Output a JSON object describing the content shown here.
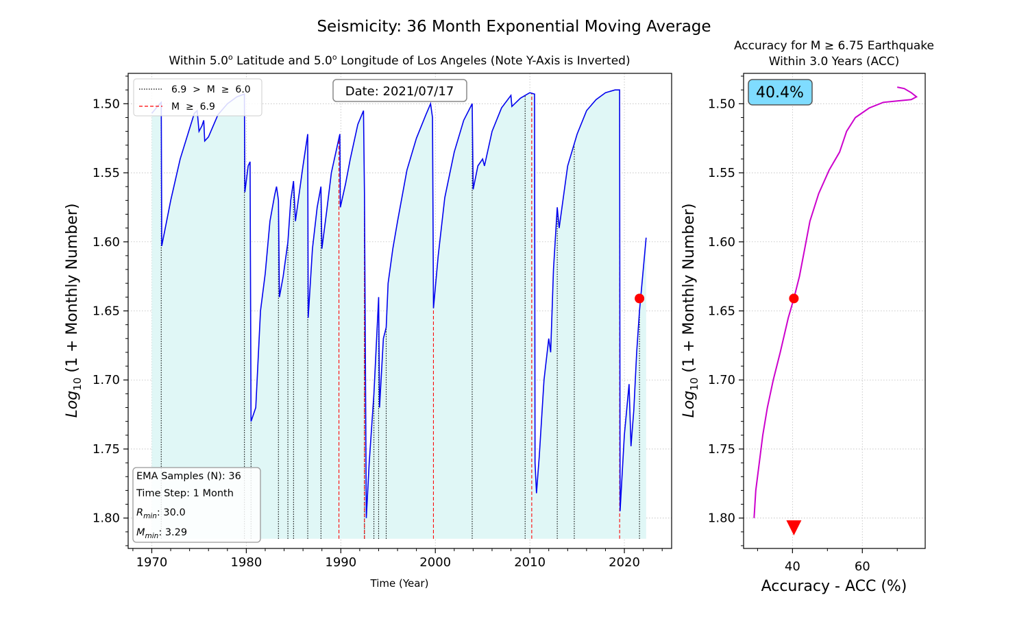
{
  "suptitle": "Seismicity: 36 Month Exponential Moving Average",
  "colors": {
    "ema_line": "#0000ee",
    "fill": "#e0f7f6",
    "event_small": "#000000",
    "event_large": "#ff0000",
    "current_marker": "#ff0000",
    "acc_line": "#cc00cc",
    "acc_badge_bg": "#7fdcff",
    "grid": "#bbbbbb"
  },
  "chart_data": [
    {
      "type": "line",
      "title": "Within 5.0° Latitude and 5.0° Longitude of Los Angeles (Note Y-Axis is Inverted)",
      "title_parts": {
        "a": "Within 5.0",
        "b": "o",
        "c": " Latitude and 5.0",
        "d": "o",
        "e": " Longitude of Los Angeles (Note Y-Axis is Inverted)"
      },
      "xlabel": "Time (Year)",
      "ylabel": "Log10 (1 + Monthly Number)",
      "ylabel_parts": {
        "base": "Log",
        "sub": "10",
        "rest": " (1 + Monthly Number)"
      },
      "xlim": [
        1967.5,
        2025
      ],
      "ylim": [
        1.822,
        1.478
      ],
      "y_inverted": true,
      "grid": true,
      "xticks": [
        "1970",
        "1980",
        "1990",
        "2000",
        "2010",
        "2020"
      ],
      "yticks": [
        "1.50",
        "1.55",
        "1.60",
        "1.65",
        "1.70",
        "1.75",
        "1.80"
      ],
      "date_badge": "Date: 2021/07/17",
      "legend": {
        "position": "top-left",
        "entries": [
          {
            "label": "6.9  >  M  ≥  6.0",
            "style": "dotted black"
          },
          {
            "label": "M  ≥  6.9",
            "style": "dashed red"
          }
        ]
      },
      "info_box": {
        "lines": [
          "EMA Samples (N): 36",
          "Time Step: 1 Month"
        ],
        "rmin": {
          "sym": "R",
          "sub": "min",
          "val": ": 30.0"
        },
        "mmin": {
          "sym": "M",
          "sub": "min",
          "val": ": 3.29"
        }
      },
      "fill_baseline": 1.815,
      "series": [
        {
          "style": "solid blue",
          "points": [
            [
              1970.0,
              1.507
            ],
            [
              1970.6,
              1.502
            ],
            [
              1971.0,
              1.499
            ],
            [
              1971.05,
              1.603
            ],
            [
              1972.0,
              1.57
            ],
            [
              1973.0,
              1.54
            ],
            [
              1974.0,
              1.518
            ],
            [
              1974.5,
              1.507
            ],
            [
              1974.8,
              1.505
            ],
            [
              1975.0,
              1.52
            ],
            [
              1975.3,
              1.516
            ],
            [
              1975.5,
              1.512
            ],
            [
              1975.6,
              1.527
            ],
            [
              1976.0,
              1.524
            ],
            [
              1977.0,
              1.508
            ],
            [
              1978.0,
              1.5
            ],
            [
              1979.0,
              1.495
            ],
            [
              1979.8,
              1.493
            ],
            [
              1979.85,
              1.564
            ],
            [
              1980.2,
              1.545
            ],
            [
              1980.4,
              1.542
            ],
            [
              1980.5,
              1.73
            ],
            [
              1981.0,
              1.72
            ],
            [
              1981.5,
              1.65
            ],
            [
              1982.0,
              1.623
            ],
            [
              1982.5,
              1.585
            ],
            [
              1983.0,
              1.566
            ],
            [
              1983.2,
              1.56
            ],
            [
              1983.4,
              1.57
            ],
            [
              1983.5,
              1.64
            ],
            [
              1983.9,
              1.625
            ],
            [
              1984.4,
              1.6
            ],
            [
              1984.7,
              1.57
            ],
            [
              1985.0,
              1.556
            ],
            [
              1985.2,
              1.585
            ],
            [
              1985.5,
              1.57
            ],
            [
              1986.0,
              1.545
            ],
            [
              1986.5,
              1.522
            ],
            [
              1986.55,
              1.655
            ],
            [
              1987.0,
              1.605
            ],
            [
              1987.5,
              1.575
            ],
            [
              1987.9,
              1.56
            ],
            [
              1988.0,
              1.605
            ],
            [
              1988.5,
              1.578
            ],
            [
              1989.0,
              1.55
            ],
            [
              1989.9,
              1.522
            ],
            [
              1989.95,
              1.575
            ],
            [
              1990.5,
              1.558
            ],
            [
              1991.0,
              1.54
            ],
            [
              1991.8,
              1.515
            ],
            [
              1992.4,
              1.505
            ],
            [
              1992.5,
              1.565
            ],
            [
              1992.7,
              1.8
            ],
            [
              1993.0,
              1.76
            ],
            [
              1993.5,
              1.71
            ],
            [
              1994.0,
              1.64
            ],
            [
              1994.1,
              1.72
            ],
            [
              1994.5,
              1.67
            ],
            [
              1994.8,
              1.662
            ],
            [
              1995.0,
              1.63
            ],
            [
              1995.5,
              1.605
            ],
            [
              1996.0,
              1.585
            ],
            [
              1997.0,
              1.548
            ],
            [
              1998.0,
              1.525
            ],
            [
              1999.0,
              1.508
            ],
            [
              1999.5,
              1.5
            ],
            [
              1999.7,
              1.51
            ],
            [
              1999.8,
              1.648
            ],
            [
              2000.3,
              1.61
            ],
            [
              2001.0,
              1.568
            ],
            [
              2002.0,
              1.535
            ],
            [
              2003.0,
              1.512
            ],
            [
              2003.9,
              1.5
            ],
            [
              2004.0,
              1.562
            ],
            [
              2004.5,
              1.545
            ],
            [
              2005.0,
              1.54
            ],
            [
              2005.2,
              1.545
            ],
            [
              2006.0,
              1.52
            ],
            [
              2007.0,
              1.503
            ],
            [
              2008.0,
              1.494
            ],
            [
              2008.1,
              1.502
            ],
            [
              2009.0,
              1.496
            ],
            [
              2009.5,
              1.494
            ],
            [
              2010.0,
              1.492
            ],
            [
              2010.5,
              1.493
            ],
            [
              2010.55,
              1.76
            ],
            [
              2010.7,
              1.782
            ],
            [
              2011.0,
              1.755
            ],
            [
              2011.5,
              1.7
            ],
            [
              2012.0,
              1.67
            ],
            [
              2012.2,
              1.68
            ],
            [
              2012.5,
              1.62
            ],
            [
              2012.9,
              1.575
            ],
            [
              2013.1,
              1.59
            ],
            [
              2013.5,
              1.57
            ],
            [
              2014.0,
              1.545
            ],
            [
              2015.0,
              1.522
            ],
            [
              2016.0,
              1.505
            ],
            [
              2017.0,
              1.497
            ],
            [
              2018.0,
              1.492
            ],
            [
              2019.0,
              1.49
            ],
            [
              2019.5,
              1.49
            ],
            [
              2019.55,
              1.795
            ],
            [
              2020.0,
              1.74
            ],
            [
              2020.5,
              1.703
            ],
            [
              2020.7,
              1.748
            ],
            [
              2021.0,
              1.722
            ],
            [
              2021.3,
              1.68
            ],
            [
              2021.6,
              1.65
            ],
            [
              2022.0,
              1.62
            ],
            [
              2022.3,
              1.597
            ]
          ]
        }
      ],
      "events_small": [
        1971.0,
        1979.8,
        1980.5,
        1983.4,
        1984.4,
        1985.0,
        1986.5,
        1987.9,
        1992.5,
        1993.5,
        1994.0,
        1994.8,
        2003.9,
        2009.5,
        2012.9,
        2014.7,
        2021.6
      ],
      "events_large": [
        1989.8,
        1992.5,
        1999.8,
        2010.2,
        2019.5
      ],
      "current_point": {
        "x": 2021.6,
        "y": 1.641
      }
    },
    {
      "type": "line",
      "title": "Accuracy for M ≥ 6.75 Earthquake Within 3.0 Years (ACC)",
      "title_line1": "Accuracy for M ≥ 6.75 Earthquake",
      "title_line2": "Within 3.0 Years (ACC)",
      "xlabel": "Accuracy - ACC (%)",
      "ylabel": "Log10 (1 + Monthly Number)",
      "xlim": [
        26,
        78
      ],
      "ylim": [
        1.822,
        1.478
      ],
      "xticks": [
        "40",
        "60"
      ],
      "yticks": [
        "1.50",
        "1.55",
        "1.60",
        "1.65",
        "1.70",
        "1.75",
        "1.80"
      ],
      "grid": true,
      "badge": "40.4%",
      "series": [
        {
          "style": "solid magenta",
          "points": [
            [
              29.0,
              1.8
            ],
            [
              29.5,
              1.78
            ],
            [
              30.5,
              1.76
            ],
            [
              31.5,
              1.74
            ],
            [
              32.8,
              1.72
            ],
            [
              34.5,
              1.7
            ],
            [
              36.5,
              1.68
            ],
            [
              38.8,
              1.655
            ],
            [
              40.4,
              1.641
            ],
            [
              42.0,
              1.625
            ],
            [
              43.5,
              1.605
            ],
            [
              45.0,
              1.585
            ],
            [
              47.5,
              1.565
            ],
            [
              50.5,
              1.548
            ],
            [
              53.5,
              1.535
            ],
            [
              55.5,
              1.52
            ],
            [
              58.0,
              1.51
            ],
            [
              62.0,
              1.503
            ],
            [
              66.0,
              1.499
            ],
            [
              70.0,
              1.498
            ],
            [
              74.0,
              1.497
            ],
            [
              75.5,
              1.495
            ],
            [
              74.0,
              1.492
            ],
            [
              72.0,
              1.489
            ],
            [
              70.0,
              1.488
            ]
          ]
        }
      ],
      "current_point": {
        "x": 40.4,
        "y": 1.641
      },
      "acc_marker": {
        "x": 40.4
      }
    }
  ]
}
